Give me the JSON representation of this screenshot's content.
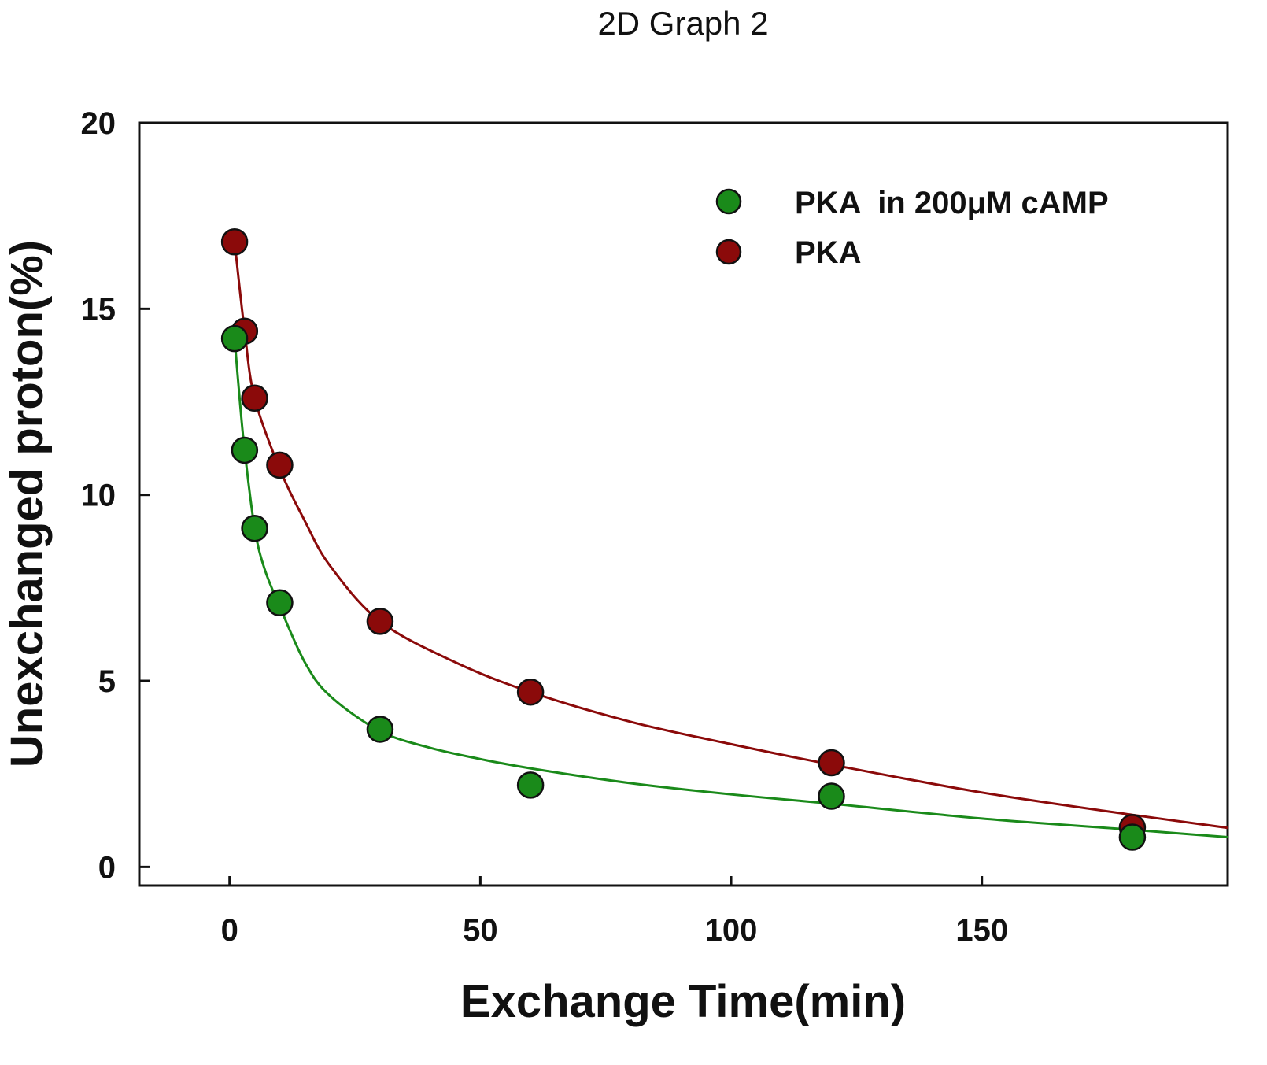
{
  "chart_data": {
    "type": "scatter",
    "title": "2D Graph 2",
    "xlabel": "Exchange Time(min)",
    "ylabel": "Unexchanged proton(%)",
    "xlim": [
      -18,
      199
    ],
    "ylim": [
      -0.5,
      20
    ],
    "xticks": [
      0,
      50,
      100,
      150
    ],
    "yticks": [
      0,
      5,
      10,
      15,
      20
    ],
    "grid": false,
    "legend_position": "top-right",
    "series": [
      {
        "name": "PKA  in 200μM cAMP",
        "color": "#1a8a1a",
        "x": [
          1,
          3,
          5,
          10,
          30,
          60,
          120,
          180
        ],
        "y": [
          14.2,
          11.2,
          9.1,
          7.1,
          3.7,
          2.2,
          1.9,
          0.8
        ],
        "fit": [
          [
            1,
            14.2
          ],
          [
            2,
            12.6
          ],
          [
            3,
            11.2
          ],
          [
            5,
            9.1
          ],
          [
            7,
            8.0
          ],
          [
            10,
            7.0
          ],
          [
            15,
            5.5
          ],
          [
            20,
            4.6
          ],
          [
            30,
            3.65
          ],
          [
            40,
            3.2
          ],
          [
            50,
            2.9
          ],
          [
            60,
            2.65
          ],
          [
            80,
            2.25
          ],
          [
            100,
            1.95
          ],
          [
            120,
            1.7
          ],
          [
            150,
            1.3
          ],
          [
            180,
            1.0
          ],
          [
            199,
            0.8
          ]
        ]
      },
      {
        "name": "PKA",
        "color": "#8b0a0a",
        "x": [
          1,
          3,
          5,
          10,
          30,
          60,
          120,
          180
        ],
        "y": [
          16.8,
          14.4,
          12.6,
          10.8,
          6.6,
          4.7,
          2.8,
          1.06
        ],
        "fit": [
          [
            1,
            16.8
          ],
          [
            3,
            14.4
          ],
          [
            5,
            12.6
          ],
          [
            10,
            10.7
          ],
          [
            15,
            9.3
          ],
          [
            20,
            8.1
          ],
          [
            30,
            6.6
          ],
          [
            45,
            5.5
          ],
          [
            60,
            4.7
          ],
          [
            80,
            3.9
          ],
          [
            100,
            3.3
          ],
          [
            120,
            2.75
          ],
          [
            150,
            2.0
          ],
          [
            180,
            1.4
          ],
          [
            199,
            1.05
          ]
        ]
      }
    ]
  }
}
